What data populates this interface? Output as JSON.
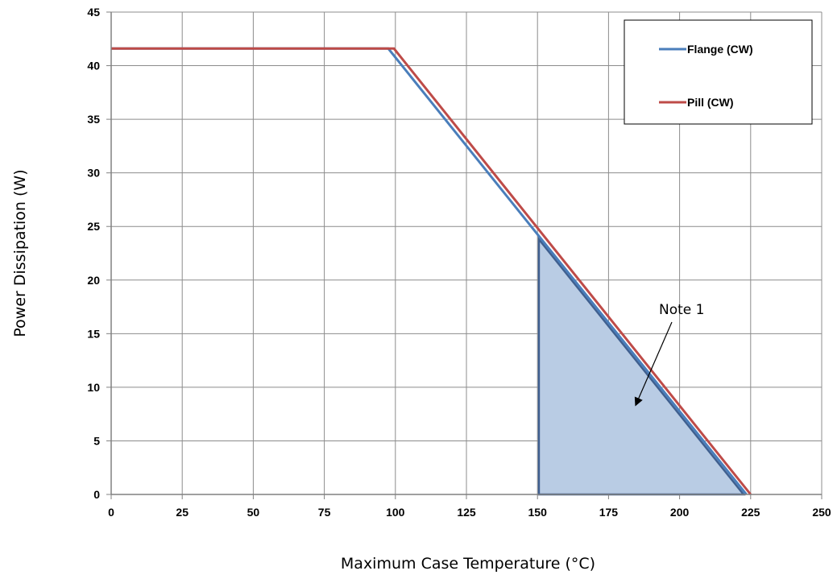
{
  "chart_data": {
    "type": "line",
    "xlabel": "Maximum Case Temperature (°C)",
    "ylabel": "Power Dissipation (W)",
    "xlim": [
      0,
      250
    ],
    "ylim": [
      0,
      45
    ],
    "x_ticks": [
      0,
      25,
      50,
      75,
      100,
      125,
      150,
      175,
      200,
      225,
      250
    ],
    "y_ticks": [
      0,
      5,
      10,
      15,
      20,
      25,
      30,
      35,
      40,
      45
    ],
    "grid": true,
    "legend_position": "top-right",
    "series": [
      {
        "name": "Flange (CW)",
        "color": "#4a7ebb",
        "x": [
          0,
          97.5,
          223.5
        ],
        "y": [
          41.6,
          41.6,
          0
        ]
      },
      {
        "name": "Pill (CW)",
        "color": "#be4b48",
        "x": [
          0,
          99.5,
          225
        ],
        "y": [
          41.6,
          41.6,
          0
        ]
      }
    ],
    "shaded_region": {
      "x": [
        150.5,
        150.5,
        222.5
      ],
      "y": [
        0,
        23.8,
        0
      ],
      "fill": "#b9cce4",
      "stroke": "#3f5f8f"
    },
    "annotations": [
      {
        "text": "Note 1",
        "x": 192,
        "y": 17,
        "arrow_to": [
          184.5,
          8.3
        ]
      }
    ]
  }
}
